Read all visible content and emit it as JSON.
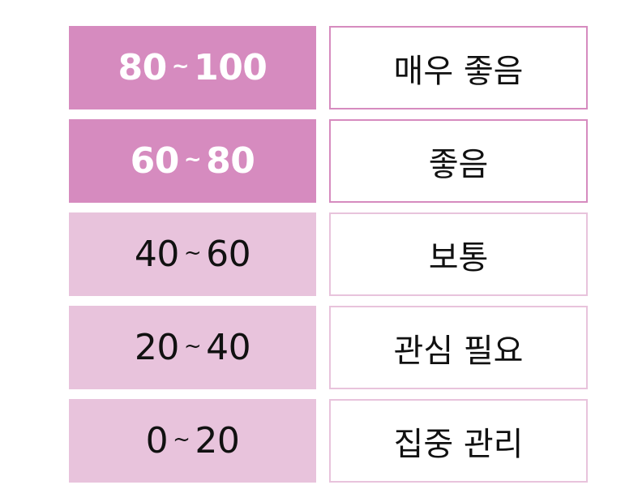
{
  "rows": [
    {
      "min": "80",
      "sep": "~",
      "max": "100",
      "label": "매우 좋음",
      "tone": "strong"
    },
    {
      "min": "60",
      "sep": "~",
      "max": "80",
      "label": "좋음",
      "tone": "strong"
    },
    {
      "min": "40",
      "sep": "~",
      "max": "60",
      "label": "보통",
      "tone": "light"
    },
    {
      "min": "20",
      "sep": "~",
      "max": "40",
      "label": "관심 필요",
      "tone": "light"
    },
    {
      "min": "0",
      "sep": "~",
      "max": "20",
      "label": "집중 관리",
      "tone": "light"
    }
  ],
  "colors": {
    "strong_fill": "#d68bbf",
    "light_fill": "#e8c3dc",
    "text_dark": "#111111",
    "text_light": "#ffffff"
  }
}
